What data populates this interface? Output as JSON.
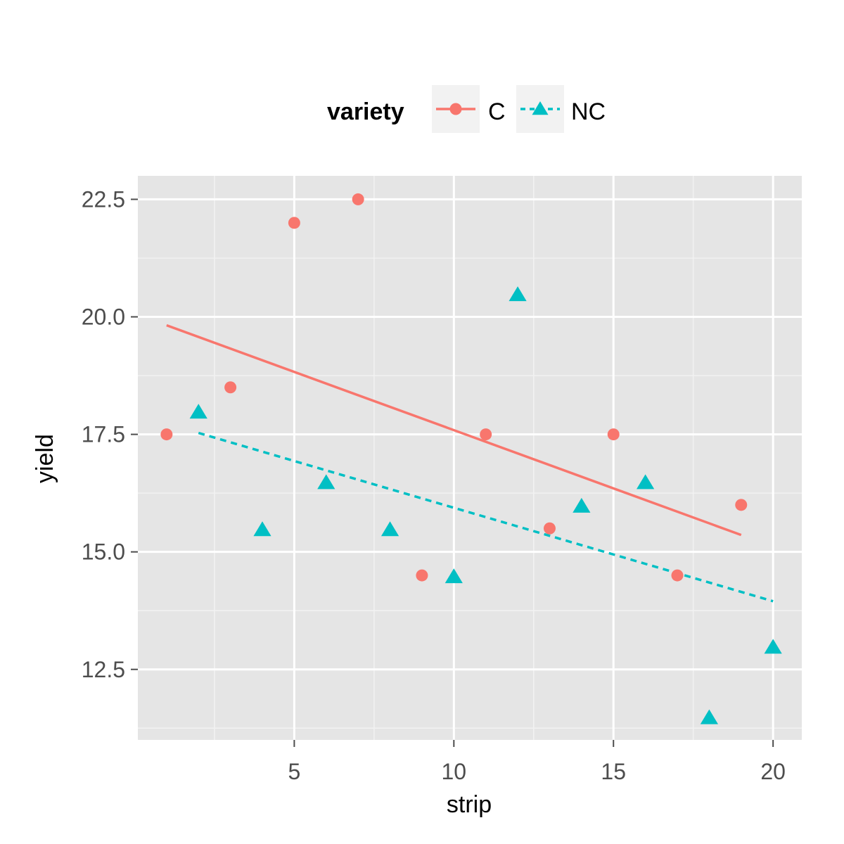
{
  "chart_data": {
    "type": "scatter",
    "title": "",
    "xlabel": "strip",
    "ylabel": "yield",
    "xlim": [
      0.1,
      20.9
    ],
    "ylim": [
      11.0,
      23.0
    ],
    "x_ticks": [
      5,
      10,
      15,
      20
    ],
    "x_tick_labels": [
      "5",
      "10",
      "15",
      "20"
    ],
    "y_ticks": [
      12.5,
      15.0,
      17.5,
      20.0,
      22.5
    ],
    "y_tick_labels": [
      "12.5",
      "15.0",
      "17.5",
      "20.0",
      "22.5"
    ],
    "grid": true,
    "legend": {
      "title": "variety",
      "position": "top"
    },
    "series": [
      {
        "name": "C",
        "color": "#F8766D",
        "marker": "circle",
        "line_style": "solid",
        "x": [
          1,
          3,
          5,
          7,
          9,
          11,
          13,
          15,
          17,
          19
        ],
        "y": [
          17.5,
          18.5,
          22.0,
          22.5,
          14.5,
          17.5,
          15.5,
          17.5,
          14.5,
          16.0
        ],
        "fit_line": {
          "x": [
            1,
            19
          ],
          "y": [
            19.82,
            15.36
          ]
        }
      },
      {
        "name": "NC",
        "color": "#00BFC4",
        "marker": "triangle",
        "line_style": "dashed",
        "x": [
          2,
          4,
          6,
          8,
          10,
          12,
          14,
          16,
          18,
          20
        ],
        "y": [
          18.0,
          15.5,
          16.5,
          15.5,
          14.5,
          20.5,
          16.0,
          16.5,
          11.5,
          13.0
        ],
        "fit_line": {
          "x": [
            2,
            20
          ],
          "y": [
            17.53,
            13.95
          ]
        }
      }
    ]
  }
}
